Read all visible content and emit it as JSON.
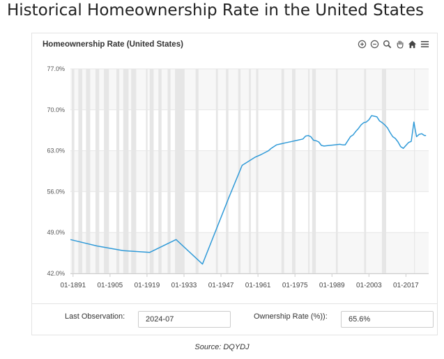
{
  "page": {
    "heading": "Historical Homeownership Rate in the United States",
    "source": "Source: DQYDJ"
  },
  "toolbar": {
    "icons": [
      "zoom-in-icon",
      "zoom-out-icon",
      "magnify-icon",
      "pan-hand-icon",
      "home-icon",
      "menu-icon"
    ]
  },
  "footer": {
    "last_obs_label": "Last Observation:",
    "last_obs_value": "2024-07",
    "rate_label": "Ownership Rate (%)):",
    "rate_value": "65.6%"
  },
  "chart_data": {
    "type": "line",
    "title": "Homeownership Rate (United States)",
    "xlabel": "",
    "ylabel": "",
    "xlim": [
      1890,
      2025.6
    ],
    "ylim": [
      42,
      77
    ],
    "y_ticks": [
      42,
      49,
      56,
      63,
      70,
      77
    ],
    "y_tick_labels": [
      "42.0%",
      "49.0%",
      "56.0%",
      "63.0%",
      "70.0%",
      "77.0%"
    ],
    "x_ticks": [
      1891,
      1905,
      1919,
      1933,
      1947,
      1961,
      1975,
      1989,
      2003,
      2017
    ],
    "x_tick_labels": [
      "01-1891",
      "01-1905",
      "01-1919",
      "01-1933",
      "01-1947",
      "01-1961",
      "01-1975",
      "01-1989",
      "01-2003",
      "01-2017"
    ],
    "grid": true,
    "line_color": "#2f9ad8",
    "recession_color": "#e6e6e6",
    "series": [
      {
        "values": [
          [
            1890,
            47.8
          ],
          [
            1900,
            46.7
          ],
          [
            1910,
            45.9
          ],
          [
            1920,
            45.6
          ],
          [
            1930,
            47.8
          ],
          [
            1940,
            43.6
          ],
          [
            1950,
            55.0
          ],
          [
            1955,
            60.5
          ],
          [
            1960,
            61.9
          ],
          [
            1962,
            62.3
          ],
          [
            1965,
            63.0
          ],
          [
            1966,
            63.4
          ],
          [
            1968,
            64.0
          ],
          [
            1970,
            64.2
          ],
          [
            1972,
            64.4
          ],
          [
            1974,
            64.6
          ],
          [
            1976,
            64.8
          ],
          [
            1978,
            65.0
          ],
          [
            1979,
            65.5
          ],
          [
            1980,
            65.6
          ],
          [
            1981,
            65.4
          ],
          [
            1982,
            64.8
          ],
          [
            1983,
            64.7
          ],
          [
            1984,
            64.5
          ],
          [
            1985,
            63.9
          ],
          [
            1986,
            63.8
          ],
          [
            1988,
            63.9
          ],
          [
            1990,
            64.0
          ],
          [
            1992,
            64.1
          ],
          [
            1993,
            64.0
          ],
          [
            1994,
            64.0
          ],
          [
            1995,
            64.7
          ],
          [
            1996,
            65.4
          ],
          [
            1997,
            65.7
          ],
          [
            1998,
            66.3
          ],
          [
            1999,
            66.8
          ],
          [
            2000,
            67.4
          ],
          [
            2001,
            67.8
          ],
          [
            2002,
            67.9
          ],
          [
            2003,
            68.3
          ],
          [
            2004,
            69.0
          ],
          [
            2005,
            68.9
          ],
          [
            2006,
            68.8
          ],
          [
            2007,
            68.1
          ],
          [
            2008,
            67.8
          ],
          [
            2009,
            67.4
          ],
          [
            2010,
            66.9
          ],
          [
            2011,
            66.1
          ],
          [
            2012,
            65.4
          ],
          [
            2013,
            65.1
          ],
          [
            2014,
            64.5
          ],
          [
            2015,
            63.7
          ],
          [
            2016,
            63.4
          ],
          [
            2017,
            63.9
          ],
          [
            2018,
            64.4
          ],
          [
            2019,
            64.6
          ],
          [
            2020,
            67.9
          ],
          [
            2020.5,
            66.6
          ],
          [
            2021,
            65.4
          ],
          [
            2022,
            65.8
          ],
          [
            2023,
            65.9
          ],
          [
            2024,
            65.6
          ],
          [
            2024.6,
            65.6
          ]
        ]
      }
    ],
    "shaded_periods": [
      [
        1890.5,
        1891.5
      ],
      [
        1893.0,
        1894.5
      ],
      [
        1895.9,
        1897.5
      ],
      [
        1899.5,
        1900.9
      ],
      [
        1902.7,
        1904.6
      ],
      [
        1907.4,
        1908.5
      ],
      [
        1910.0,
        1912.0
      ],
      [
        1913.0,
        1914.9
      ],
      [
        1918.6,
        1919.2
      ],
      [
        1920.0,
        1921.5
      ],
      [
        1923.3,
        1924.5
      ],
      [
        1926.8,
        1927.9
      ],
      [
        1929.6,
        1933.2
      ],
      [
        1937.4,
        1938.5
      ],
      [
        1945.1,
        1945.8
      ],
      [
        1948.9,
        1949.8
      ],
      [
        1953.5,
        1954.4
      ],
      [
        1957.6,
        1958.3
      ],
      [
        1960.3,
        1961.1
      ],
      [
        1969.9,
        1970.9
      ],
      [
        1973.9,
        1975.2
      ],
      [
        1980.0,
        1980.5
      ],
      [
        1981.5,
        1982.9
      ],
      [
        1990.5,
        1991.2
      ],
      [
        2001.2,
        2001.9
      ],
      [
        2007.9,
        2009.5
      ],
      [
        2020.1,
        2020.4
      ]
    ]
  }
}
